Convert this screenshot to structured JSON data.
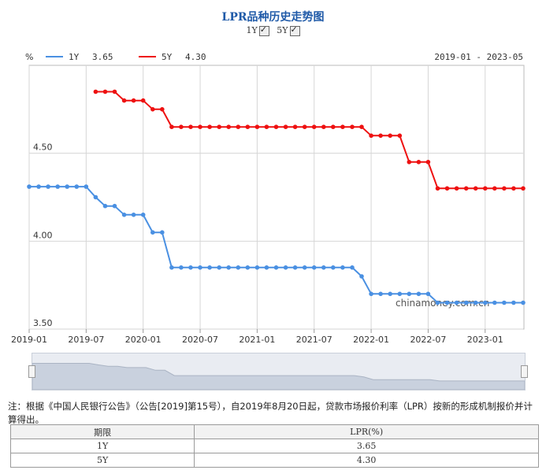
{
  "title": "LPR品种历史走势图",
  "toggles": [
    {
      "label": "1Y",
      "checked": true
    },
    {
      "label": "5Y",
      "checked": true
    }
  ],
  "legend": [
    {
      "name": "1Y",
      "value": "3.65",
      "color": "#4a90e2"
    },
    {
      "name": "5Y",
      "value": "4.30",
      "color": "#ee1111"
    }
  ],
  "unit": "%",
  "date_range": "2019-01 - 2023-05",
  "watermark": "chinamoney.com.cn",
  "note": "注：根据《中国人民银行公告》（公告[2019]第15号），自2019年8月20日起，贷款市场报价利率（LPR）按新的形成机制报价并计算得出。",
  "table": {
    "headers": [
      "期限",
      "LPR(%)"
    ],
    "rows": [
      [
        "1Y",
        "3.65"
      ],
      [
        "5Y",
        "4.30"
      ]
    ]
  },
  "chart_data": {
    "type": "line",
    "ylim": [
      3.5,
      5.0
    ],
    "yticks": [
      "3.50",
      "4.00",
      "4.50"
    ],
    "xticks": [
      "2019-01",
      "2019-07",
      "2020-01",
      "2020-07",
      "2021-01",
      "2021-07",
      "2022-01",
      "2022-07",
      "2023-01"
    ],
    "x": [
      "2019-01",
      "2019-02",
      "2019-03",
      "2019-04",
      "2019-05",
      "2019-06",
      "2019-07",
      "2019-08",
      "2019-09",
      "2019-10",
      "2019-11",
      "2019-12",
      "2020-01",
      "2020-02",
      "2020-03",
      "2020-04",
      "2020-05",
      "2020-06",
      "2020-07",
      "2020-08",
      "2020-09",
      "2020-10",
      "2020-11",
      "2020-12",
      "2021-01",
      "2021-02",
      "2021-03",
      "2021-04",
      "2021-05",
      "2021-06",
      "2021-07",
      "2021-08",
      "2021-09",
      "2021-10",
      "2021-11",
      "2021-12",
      "2022-01",
      "2022-02",
      "2022-03",
      "2022-04",
      "2022-05",
      "2022-06",
      "2022-07",
      "2022-08",
      "2022-09",
      "2022-10",
      "2022-11",
      "2022-12",
      "2023-01",
      "2023-02",
      "2023-03",
      "2023-04",
      "2023-05"
    ],
    "series": [
      {
        "name": "1Y",
        "color": "#4a90e2",
        "values": [
          4.31,
          4.31,
          4.31,
          4.31,
          4.31,
          4.31,
          4.31,
          4.25,
          4.2,
          4.2,
          4.15,
          4.15,
          4.15,
          4.05,
          4.05,
          3.85,
          3.85,
          3.85,
          3.85,
          3.85,
          3.85,
          3.85,
          3.85,
          3.85,
          3.85,
          3.85,
          3.85,
          3.85,
          3.85,
          3.85,
          3.85,
          3.85,
          3.85,
          3.85,
          3.85,
          3.8,
          3.7,
          3.7,
          3.7,
          3.7,
          3.7,
          3.7,
          3.7,
          3.65,
          3.65,
          3.65,
          3.65,
          3.65,
          3.65,
          3.65,
          3.65,
          3.65,
          3.65
        ]
      },
      {
        "name": "5Y",
        "color": "#ee1111",
        "values": [
          null,
          null,
          null,
          null,
          null,
          null,
          null,
          4.85,
          4.85,
          4.85,
          4.8,
          4.8,
          4.8,
          4.75,
          4.75,
          4.65,
          4.65,
          4.65,
          4.65,
          4.65,
          4.65,
          4.65,
          4.65,
          4.65,
          4.65,
          4.65,
          4.65,
          4.65,
          4.65,
          4.65,
          4.65,
          4.65,
          4.65,
          4.65,
          4.65,
          4.65,
          4.6,
          4.6,
          4.6,
          4.6,
          4.45,
          4.45,
          4.45,
          4.3,
          4.3,
          4.3,
          4.3,
          4.3,
          4.3,
          4.3,
          4.3,
          4.3,
          4.3
        ]
      }
    ]
  }
}
